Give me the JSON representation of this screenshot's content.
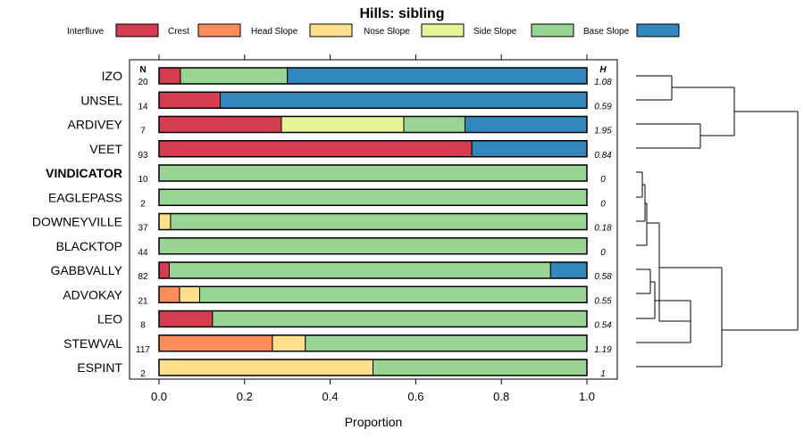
{
  "chart_data": {
    "type": "bar",
    "orientation": "horizontal",
    "stacked": true,
    "title": "Hills: sibling",
    "xlabel": "Proportion",
    "xlim": [
      0,
      1
    ],
    "xticks": [
      "0.0",
      "0.2",
      "0.4",
      "0.6",
      "0.8",
      "1.0"
    ],
    "xtick_values": [
      0,
      0.2,
      0.4,
      0.6,
      0.8,
      1.0
    ],
    "n_header": "N",
    "h_header": "H",
    "legend": [
      {
        "name": "Interfluve",
        "color": "#D53E4F"
      },
      {
        "name": "Crest",
        "color": "#FC8D59"
      },
      {
        "name": "Head Slope",
        "color": "#FEE08B"
      },
      {
        "name": "Nose Slope",
        "color": "#E6F598"
      },
      {
        "name": "Side Slope",
        "color": "#99D594"
      },
      {
        "name": "Base Slope",
        "color": "#3288BD"
      }
    ],
    "rows": [
      {
        "label": "IZO",
        "n": "20",
        "h": "1.08",
        "bold": false,
        "values": [
          0.05,
          0,
          0,
          0,
          0.25,
          0.7
        ]
      },
      {
        "label": "UNSEL",
        "n": "14",
        "h": "0.59",
        "bold": false,
        "values": [
          0.143,
          0,
          0,
          0,
          0,
          0.857
        ]
      },
      {
        "label": "ARDIVEY",
        "n": "7",
        "h": "1.95",
        "bold": false,
        "values": [
          0.286,
          0,
          0,
          0.286,
          0.143,
          0.285
        ]
      },
      {
        "label": "VEET",
        "n": "93",
        "h": "0.84",
        "bold": false,
        "values": [
          0.731,
          0,
          0,
          0,
          0,
          0.269
        ]
      },
      {
        "label": "VINDICATOR",
        "n": "10",
        "h": "0",
        "bold": true,
        "values": [
          0,
          0,
          0,
          0,
          1.0,
          0
        ]
      },
      {
        "label": "EAGLEPASS",
        "n": "2",
        "h": "0",
        "bold": false,
        "values": [
          0,
          0,
          0,
          0,
          1.0,
          0
        ]
      },
      {
        "label": "DOWNEYVILLE",
        "n": "37",
        "h": "0.18",
        "bold": false,
        "values": [
          0,
          0,
          0.027,
          0,
          0.973,
          0
        ]
      },
      {
        "label": "BLACKTOP",
        "n": "44",
        "h": "0",
        "bold": false,
        "values": [
          0,
          0,
          0,
          0,
          1.0,
          0
        ]
      },
      {
        "label": "GABBVALLY",
        "n": "82",
        "h": "0.58",
        "bold": false,
        "values": [
          0.024,
          0,
          0,
          0,
          0.891,
          0.085
        ]
      },
      {
        "label": "ADVOKAY",
        "n": "21",
        "h": "0.55",
        "bold": false,
        "values": [
          0,
          0.048,
          0.047,
          0,
          0.905,
          0
        ]
      },
      {
        "label": "LEO",
        "n": "8",
        "h": "0.54",
        "bold": false,
        "values": [
          0.125,
          0,
          0,
          0,
          0.875,
          0
        ]
      },
      {
        "label": "STEWVAL",
        "n": "117",
        "h": "1.19",
        "bold": false,
        "values": [
          0,
          0.265,
          0.077,
          0,
          0.658,
          0
        ]
      },
      {
        "label": "ESPINT",
        "n": "2",
        "h": "1",
        "bold": false,
        "values": [
          0,
          0,
          0.5,
          0,
          0.5,
          0
        ]
      }
    ]
  }
}
